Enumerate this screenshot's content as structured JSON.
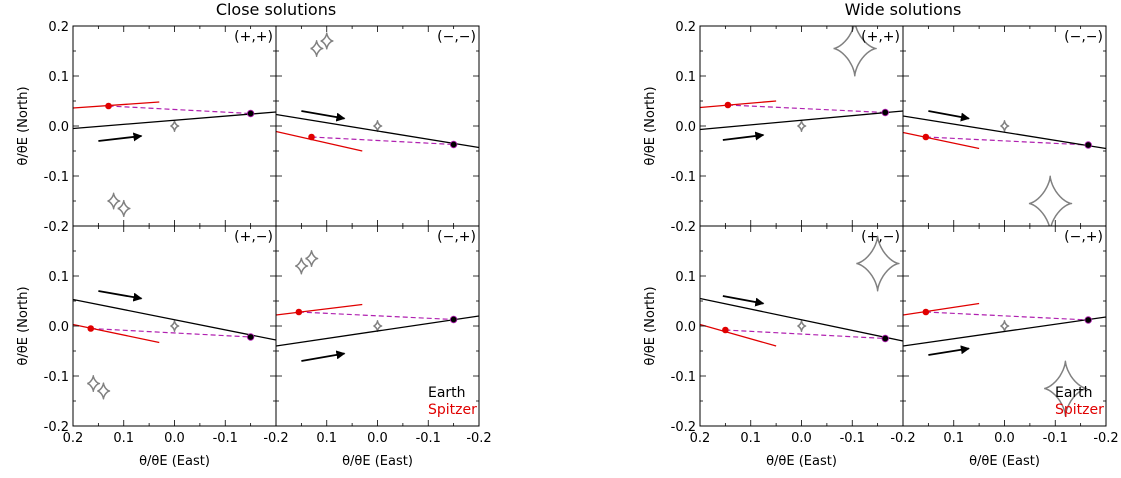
{
  "chart_data": {
    "type": "line",
    "groups": [
      {
        "title": "Close solutions"
      },
      {
        "title": "Wide solutions"
      }
    ],
    "xlabel": "θ/θE (East)",
    "ylabel": "θ/θE (North)",
    "xlim": [
      0.2,
      -0.2
    ],
    "ylim": [
      -0.2,
      0.2
    ],
    "xticks": [
      "0.2",
      "0.1",
      "0.0",
      "-0.1",
      "-0.2"
    ],
    "yticks_top": [
      "0.2",
      "0.1",
      "0.0",
      "-0.1",
      "-0.2"
    ],
    "yticks_bottom": [
      "0.1",
      "0.0",
      "-0.1",
      "-0.2"
    ],
    "legend": [
      {
        "name": "Earth",
        "color": "#000000"
      },
      {
        "name": "Spitzer",
        "color": "#e00000"
      }
    ],
    "colors": {
      "earth": "#000000",
      "spitzer": "#e00000",
      "link": "#b020b0",
      "caustic": "#808080"
    },
    "panels": [
      {
        "group": 0,
        "row": 0,
        "col": 0,
        "label": "(+,+)",
        "earth_line": [
          [
            0.2,
            -0.005
          ],
          [
            -0.2,
            0.028
          ]
        ],
        "earth_point": [
          -0.15,
          0.025
        ],
        "spitzer_line": [
          [
            0.2,
            0.036
          ],
          [
            0.03,
            0.048
          ]
        ],
        "spitzer_point": [
          0.13,
          0.04
        ],
        "arrow": [
          [
            0.15,
            -0.03
          ],
          [
            0.065,
            -0.02
          ]
        ],
        "caustics": [
          {
            "x": 0.0,
            "y": 0.0,
            "s": 0.008
          },
          {
            "x": 0.12,
            "y": -0.15,
            "s": 0.012
          },
          {
            "x": 0.1,
            "y": -0.165,
            "s": 0.012
          }
        ]
      },
      {
        "group": 0,
        "row": 0,
        "col": 1,
        "label": "(−,−)",
        "earth_line": [
          [
            0.2,
            0.023
          ],
          [
            -0.2,
            -0.043
          ]
        ],
        "earth_point": [
          -0.15,
          -0.037
        ],
        "spitzer_line": [
          [
            0.2,
            -0.011
          ],
          [
            0.03,
            -0.05
          ]
        ],
        "spitzer_point": [
          0.13,
          -0.022
        ],
        "arrow": [
          [
            0.15,
            0.03
          ],
          [
            0.065,
            0.015
          ]
        ],
        "caustics": [
          {
            "x": 0.0,
            "y": 0.0,
            "s": 0.008
          },
          {
            "x": 0.1,
            "y": 0.17,
            "s": 0.012
          },
          {
            "x": 0.12,
            "y": 0.155,
            "s": 0.012
          }
        ]
      },
      {
        "group": 0,
        "row": 1,
        "col": 0,
        "label": "(+,−)",
        "earth_line": [
          [
            0.2,
            0.053
          ],
          [
            -0.2,
            -0.028
          ]
        ],
        "earth_point": [
          -0.15,
          -0.022
        ],
        "spitzer_line": [
          [
            0.2,
            0.003
          ],
          [
            0.03,
            -0.033
          ]
        ],
        "spitzer_point": [
          0.165,
          -0.005
        ],
        "arrow": [
          [
            0.15,
            0.07
          ],
          [
            0.065,
            0.055
          ]
        ],
        "caustics": [
          {
            "x": 0.0,
            "y": 0.0,
            "s": 0.008
          },
          {
            "x": 0.16,
            "y": -0.115,
            "s": 0.012
          },
          {
            "x": 0.14,
            "y": -0.13,
            "s": 0.012
          }
        ]
      },
      {
        "group": 0,
        "row": 1,
        "col": 1,
        "label": "(−,+)",
        "earth_line": [
          [
            0.2,
            -0.04
          ],
          [
            -0.2,
            0.02
          ]
        ],
        "earth_point": [
          -0.15,
          0.013
        ],
        "spitzer_line": [
          [
            0.2,
            0.022
          ],
          [
            0.03,
            0.043
          ]
        ],
        "spitzer_point": [
          0.155,
          0.028
        ],
        "arrow": [
          [
            0.15,
            -0.07
          ],
          [
            0.065,
            -0.055
          ]
        ],
        "caustics": [
          {
            "x": 0.0,
            "y": 0.0,
            "s": 0.008
          },
          {
            "x": 0.13,
            "y": 0.135,
            "s": 0.012
          },
          {
            "x": 0.15,
            "y": 0.12,
            "s": 0.012
          }
        ]
      },
      {
        "group": 1,
        "row": 0,
        "col": 0,
        "label": "(+,+)",
        "earth_line": [
          [
            0.2,
            -0.007
          ],
          [
            -0.2,
            0.03
          ]
        ],
        "earth_point": [
          -0.165,
          0.027
        ],
        "spitzer_line": [
          [
            0.2,
            0.037
          ],
          [
            0.05,
            0.05
          ]
        ],
        "spitzer_point": [
          0.145,
          0.042
        ],
        "arrow": [
          [
            0.155,
            -0.028
          ],
          [
            0.075,
            -0.018
          ]
        ],
        "caustics": [
          {
            "x": 0.0,
            "y": 0.0,
            "s": 0.008
          },
          {
            "x": -0.105,
            "y": 0.155,
            "s": 0.042
          }
        ]
      },
      {
        "group": 1,
        "row": 0,
        "col": 1,
        "label": "(−,−)",
        "earth_line": [
          [
            0.2,
            0.02
          ],
          [
            -0.2,
            -0.045
          ]
        ],
        "earth_point": [
          -0.165,
          -0.038
        ],
        "spitzer_line": [
          [
            0.2,
            -0.013
          ],
          [
            0.05,
            -0.045
          ]
        ],
        "spitzer_point": [
          0.155,
          -0.022
        ],
        "arrow": [
          [
            0.15,
            0.03
          ],
          [
            0.07,
            0.015
          ]
        ],
        "caustics": [
          {
            "x": 0.0,
            "y": 0.0,
            "s": 0.008
          },
          {
            "x": -0.09,
            "y": -0.155,
            "s": 0.042
          }
        ]
      },
      {
        "group": 1,
        "row": 1,
        "col": 0,
        "label": "(+,−)",
        "earth_line": [
          [
            0.2,
            0.055
          ],
          [
            -0.2,
            -0.03
          ]
        ],
        "earth_point": [
          -0.165,
          -0.025
        ],
        "spitzer_line": [
          [
            0.2,
            0.003
          ],
          [
            0.05,
            -0.04
          ]
        ],
        "spitzer_point": [
          0.15,
          -0.008
        ],
        "arrow": [
          [
            0.155,
            0.06
          ],
          [
            0.075,
            0.045
          ]
        ],
        "caustics": [
          {
            "x": 0.0,
            "y": 0.0,
            "s": 0.008
          },
          {
            "x": -0.15,
            "y": 0.125,
            "s": 0.042
          }
        ]
      },
      {
        "group": 1,
        "row": 1,
        "col": 1,
        "label": "(−,+)",
        "earth_line": [
          [
            0.2,
            -0.04
          ],
          [
            -0.2,
            0.018
          ]
        ],
        "earth_point": [
          -0.165,
          0.012
        ],
        "spitzer_line": [
          [
            0.2,
            0.022
          ],
          [
            0.05,
            0.045
          ]
        ],
        "spitzer_point": [
          0.155,
          0.028
        ],
        "arrow": [
          [
            0.15,
            -0.058
          ],
          [
            0.07,
            -0.045
          ]
        ],
        "caustics": [
          {
            "x": 0.0,
            "y": 0.0,
            "s": 0.008
          },
          {
            "x": -0.12,
            "y": -0.125,
            "s": 0.042
          }
        ]
      }
    ]
  }
}
